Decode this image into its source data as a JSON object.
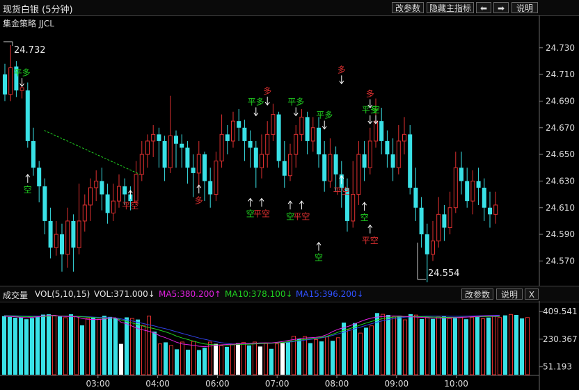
{
  "header": {
    "title": "现货白银 (5分钟)",
    "buttons": [
      "改参数",
      "隐藏主指标",
      "⬅",
      "➡",
      "说明"
    ]
  },
  "main_chart": {
    "strategy_label": "集金策略 JJCL",
    "high_label": "24.732",
    "low_label": "24.554"
  },
  "volume_panel": {
    "name": "成交量",
    "indicator": "VOL(5,10,15)",
    "vol": "VOL:371.000↓",
    "ma5": "MA5:380.200↑",
    "ma10": "MA10:378.100↓",
    "ma15": "MA15:396.200↓",
    "buttons": [
      "改参数",
      "说明",
      "X"
    ]
  },
  "colors": {
    "up": "#e03030",
    "down": "#39e1e6",
    "ma5": "#e020e0",
    "ma10": "#20d020",
    "ma15": "#3040e0",
    "signal_buy": "#e03030",
    "signal_sell": "#20d020"
  },
  "chart_data": [
    {
      "type": "candlestick",
      "y_ticks": [
        24.73,
        24.71,
        24.69,
        24.67,
        24.65,
        24.63,
        24.61,
        24.59,
        24.57
      ],
      "y_tick_labels": [
        "24.730",
        "24.710",
        "24.690",
        "24.670",
        "24.650",
        "24.630",
        "24.610",
        "24.590",
        "24.570"
      ],
      "ylim": [
        24.553,
        24.745
      ],
      "x_time_labels": [
        {
          "label": "03:00",
          "index": 16
        },
        {
          "label": "04:00",
          "index": 27
        },
        {
          "label": "06:00",
          "index": 38
        },
        {
          "label": "07:00",
          "index": 49
        },
        {
          "label": "08:00",
          "index": 60
        },
        {
          "label": "09:00",
          "index": 71
        },
        {
          "label": "10:00",
          "index": 82
        }
      ],
      "candles": [
        [
          24.71,
          24.695,
          24.718,
          24.69
        ],
        [
          24.695,
          24.715,
          24.732,
          24.69
        ],
        [
          24.716,
          24.698,
          24.72,
          24.693
        ],
        [
          24.698,
          24.7,
          24.705,
          24.692
        ],
        [
          24.698,
          24.66,
          24.704,
          24.655
        ],
        [
          24.66,
          24.64,
          24.67,
          24.634
        ],
        [
          24.64,
          24.626,
          24.645,
          24.614
        ],
        [
          24.626,
          24.6,
          24.632,
          24.59
        ],
        [
          24.6,
          24.58,
          24.61,
          24.572
        ],
        [
          24.58,
          24.59,
          24.6,
          24.574
        ],
        [
          24.59,
          24.575,
          24.598,
          24.562
        ],
        [
          24.575,
          24.6,
          24.61,
          24.565
        ],
        [
          24.6,
          24.58,
          24.605,
          24.562
        ],
        [
          24.58,
          24.6,
          24.628,
          24.575
        ],
        [
          24.6,
          24.612,
          24.62,
          24.592
        ],
        [
          24.612,
          24.625,
          24.632,
          24.6
        ],
        [
          24.625,
          24.63,
          24.638,
          24.615
        ],
        [
          24.63,
          24.62,
          24.64,
          24.608
        ],
        [
          24.62,
          24.606,
          24.628,
          24.598
        ],
        [
          24.606,
          24.615,
          24.628,
          24.6
        ],
        [
          24.615,
          24.626,
          24.635,
          24.61
        ],
        [
          24.626,
          24.62,
          24.632,
          24.612
        ],
        [
          24.62,
          24.615,
          24.626,
          24.608
        ],
        [
          24.615,
          24.635,
          24.645,
          24.612
        ],
        [
          24.635,
          24.65,
          24.66,
          24.63
        ],
        [
          24.65,
          24.66,
          24.665,
          24.64
        ],
        [
          24.66,
          24.665,
          24.672,
          24.648
        ],
        [
          24.665,
          24.66,
          24.67,
          24.64
        ],
        [
          24.66,
          24.64,
          24.664,
          24.63
        ],
        [
          24.64,
          24.664,
          24.694,
          24.636
        ],
        [
          24.664,
          24.658,
          24.668,
          24.64
        ],
        [
          24.658,
          24.655,
          24.665,
          24.64
        ],
        [
          24.655,
          24.64,
          24.66,
          24.628
        ],
        [
          24.64,
          24.636,
          24.65,
          24.618
        ],
        [
          24.636,
          24.65,
          24.66,
          24.625
        ],
        [
          24.65,
          24.63,
          24.652,
          24.615
        ],
        [
          24.63,
          24.62,
          24.64,
          24.61
        ],
        [
          24.62,
          24.645,
          24.652,
          24.615
        ],
        [
          24.645,
          24.665,
          24.68,
          24.64
        ],
        [
          24.665,
          24.66,
          24.672,
          24.65
        ],
        [
          24.66,
          24.675,
          24.682,
          24.655
        ],
        [
          24.675,
          24.67,
          24.684,
          24.66
        ],
        [
          24.67,
          24.66,
          24.676,
          24.645
        ],
        [
          24.66,
          24.655,
          24.668,
          24.64
        ],
        [
          24.655,
          24.64,
          24.66,
          24.625
        ],
        [
          24.64,
          24.65,
          24.665,
          24.632
        ],
        [
          24.65,
          24.665,
          24.675,
          24.64
        ],
        [
          24.665,
          24.68,
          24.688,
          24.66
        ],
        [
          24.68,
          24.645,
          24.682,
          24.64
        ],
        [
          24.645,
          24.634,
          24.66,
          24.625
        ],
        [
          24.634,
          24.65,
          24.658,
          24.63
        ],
        [
          24.65,
          24.665,
          24.672,
          24.64
        ],
        [
          24.665,
          24.678,
          24.684,
          24.66
        ],
        [
          24.678,
          24.66,
          24.682,
          24.65
        ],
        [
          24.66,
          24.67,
          24.678,
          24.652
        ],
        [
          24.67,
          24.65,
          24.678,
          24.64
        ],
        [
          24.65,
          24.63,
          24.66,
          24.622
        ],
        [
          24.63,
          24.65,
          24.662,
          24.625
        ],
        [
          24.65,
          24.635,
          24.656,
          24.622
        ],
        [
          24.635,
          24.625,
          24.645,
          24.61
        ],
        [
          24.625,
          24.6,
          24.632,
          24.592
        ],
        [
          24.6,
          24.62,
          24.645,
          24.595
        ],
        [
          24.62,
          24.65,
          24.66,
          24.612
        ],
        [
          24.65,
          24.64,
          24.66,
          24.63
        ],
        [
          24.64,
          24.66,
          24.67,
          24.635
        ],
        [
          24.66,
          24.675,
          24.692,
          24.655
        ],
        [
          24.675,
          24.66,
          24.685,
          24.65
        ],
        [
          24.66,
          24.65,
          24.668,
          24.64
        ],
        [
          24.65,
          24.64,
          24.662,
          24.63
        ],
        [
          24.64,
          24.66,
          24.672,
          24.635
        ],
        [
          24.66,
          24.665,
          24.678,
          24.65
        ],
        [
          24.665,
          24.625,
          24.672,
          24.62
        ],
        [
          24.625,
          24.61,
          24.64,
          24.6
        ],
        [
          24.61,
          24.59,
          24.618,
          24.58
        ],
        [
          24.59,
          24.575,
          24.598,
          24.554
        ],
        [
          24.575,
          24.585,
          24.6,
          24.57
        ],
        [
          24.585,
          24.605,
          24.618,
          24.58
        ],
        [
          24.605,
          24.595,
          24.612,
          24.585
        ],
        [
          24.595,
          24.61,
          24.622,
          24.59
        ],
        [
          24.61,
          24.64,
          24.652,
          24.606
        ],
        [
          24.64,
          24.63,
          24.652,
          24.62
        ],
        [
          24.63,
          24.615,
          24.64,
          24.61
        ],
        [
          24.615,
          24.63,
          24.638,
          24.605
        ],
        [
          24.63,
          24.625,
          24.64,
          24.612
        ],
        [
          24.625,
          24.61,
          24.632,
          24.6
        ],
        [
          24.61,
          24.605,
          24.622,
          24.595
        ],
        [
          24.605,
          24.612,
          24.622,
          24.598
        ]
      ],
      "ma_line": [
        {
          "index": 3,
          "value": 24.668
        },
        {
          "index": 20,
          "value": 24.635
        }
      ],
      "signals": [
        {
          "label": "平多",
          "index": 3,
          "direction": "down",
          "price": 24.7,
          "color": "sell"
        },
        {
          "label": "空",
          "index": 4,
          "direction": "up",
          "price": 24.636,
          "color": "sell"
        },
        {
          "label": "平空",
          "index": 22,
          "direction": "up",
          "price": 24.624,
          "color": "buy"
        },
        {
          "label": "多",
          "index": 34,
          "direction": "up",
          "price": 24.628,
          "color": "buy"
        },
        {
          "label": "平多",
          "index": 44,
          "direction": "down",
          "price": 24.678,
          "color": "sell"
        },
        {
          "label": "多",
          "index": 46,
          "direction": "down",
          "price": 24.686,
          "color": "buy"
        },
        {
          "label": "空",
          "index": 43,
          "direction": "up",
          "price": 24.618,
          "color": "sell"
        },
        {
          "label": "平空",
          "index": 45,
          "direction": "up",
          "price": 24.618,
          "color": "buy"
        },
        {
          "label": "平多",
          "index": 51,
          "direction": "down",
          "price": 24.678,
          "color": "sell"
        },
        {
          "label": "空",
          "index": 50,
          "direction": "up",
          "price": 24.616,
          "color": "sell"
        },
        {
          "label": "平空",
          "index": 52,
          "direction": "up",
          "price": 24.616,
          "color": "buy"
        },
        {
          "label": "平多",
          "index": 56,
          "direction": "down",
          "price": 24.668,
          "color": "sell"
        },
        {
          "label": "空",
          "index": 55,
          "direction": "up",
          "price": 24.585,
          "color": "sell"
        },
        {
          "label": "多",
          "index": 59,
          "direction": "down",
          "price": 24.702,
          "color": "buy"
        },
        {
          "label": "平空",
          "index": 59,
          "direction": "up",
          "price": 24.635,
          "color": "buy"
        },
        {
          "label": "多",
          "index": 64,
          "direction": "down",
          "price": 24.684,
          "color": "buy"
        },
        {
          "label": "平多",
          "index": 64,
          "direction": "down",
          "price": 24.672,
          "color": "sell"
        },
        {
          "label": "空",
          "index": 63,
          "direction": "up",
          "price": 24.615,
          "color": "sell"
        },
        {
          "label": "平空",
          "index": 64,
          "direction": "up",
          "price": 24.598,
          "color": "buy"
        },
        {
          "label": "空",
          "index": 65,
          "direction": "down",
          "price": 24.672,
          "color": "sell"
        }
      ]
    },
    {
      "type": "bar",
      "y_tick_labels": [
        "409.541",
        "230.367",
        "51.193"
      ],
      "y_ticks": [
        409.541,
        230.367,
        51.193
      ],
      "ylim": [
        0,
        460
      ],
      "volumes": [
        380,
        375,
        370,
        372,
        360,
        368,
        374,
        390,
        392,
        385,
        378,
        370,
        392,
        378,
        320,
        366,
        372,
        360,
        382,
        375,
        366,
        200,
        372,
        365,
        358,
        320,
        380,
        280,
        200,
        210,
        190,
        165,
        212,
        162,
        216,
        160,
        175,
        212,
        200,
        188,
        181,
        197,
        204,
        209,
        190,
        212,
        183,
        202,
        168,
        200,
        205,
        212,
        250,
        232,
        247,
        205,
        228,
        216,
        245,
        220,
        240,
        338,
        290,
        335,
        270,
        305,
        317,
        400,
        392,
        388,
        375,
        383,
        356,
        393,
        387,
        361,
        373,
        362,
        375,
        380,
        365,
        367,
        370,
        360,
        371,
        377,
        363,
        371,
        380,
        371,
        385,
        391,
        388,
        365,
        371
      ],
      "volume_colors": [
        "d",
        "d",
        "d",
        "d",
        "d",
        "d",
        "d",
        "d",
        "d",
        "u",
        "d",
        "u",
        "d",
        "u",
        "d",
        "u",
        "d",
        "u",
        "d",
        "d",
        "d",
        "w",
        "d",
        "u",
        "d",
        "u",
        "u",
        "d",
        "u",
        "d",
        "u",
        "d",
        "u",
        "d",
        "u",
        "d",
        "d",
        "u",
        "w",
        "u",
        "d",
        "u",
        "w",
        "u",
        "d",
        "u",
        "w",
        "u",
        "d",
        "u",
        "w",
        "d",
        "u",
        "d",
        "u",
        "d",
        "u",
        "d",
        "u",
        "d",
        "u",
        "d",
        "u",
        "d",
        "u",
        "d",
        "u",
        "d",
        "u",
        "d",
        "u",
        "d",
        "u",
        "d",
        "u",
        "d",
        "u",
        "d",
        "u",
        "d",
        "u",
        "d",
        "u",
        "d",
        "u",
        "d",
        "u",
        "d",
        "u",
        "u",
        "d",
        "u",
        "d",
        "d",
        "u"
      ],
      "ma5": [
        380,
        378,
        376,
        372,
        370,
        372,
        376,
        380,
        384,
        385,
        380,
        378,
        378,
        375,
        365,
        360,
        358,
        358,
        362,
        368,
        370,
        340,
        330,
        315,
        300,
        290,
        282,
        270,
        252,
        240,
        225,
        210,
        200,
        195,
        190,
        185,
        182,
        186,
        190,
        194,
        196,
        198,
        200,
        202,
        203,
        204,
        206,
        207,
        206,
        210,
        215,
        222,
        228,
        233,
        238,
        240,
        242,
        248,
        260,
        280,
        295,
        305,
        316,
        330,
        345,
        358,
        368,
        374,
        378,
        380,
        381,
        380,
        378,
        376,
        374,
        372,
        370,
        368,
        367,
        367,
        368,
        370,
        372,
        374,
        376,
        378,
        380,
        382,
        380,
        382
      ],
      "ma10": [
        382,
        381,
        380,
        378,
        377,
        376,
        376,
        378,
        380,
        381,
        381,
        380,
        379,
        378,
        375,
        373,
        371,
        369,
        368,
        367,
        367,
        355,
        345,
        335,
        325,
        315,
        306,
        298,
        288,
        278,
        265,
        250,
        238,
        228,
        218,
        208,
        200,
        196,
        194,
        193,
        193,
        194,
        196,
        197,
        198,
        200,
        202,
        203,
        204,
        206,
        209,
        214,
        219,
        224,
        229,
        233,
        237,
        242,
        250,
        262,
        276,
        288,
        298,
        310,
        323,
        335,
        346,
        356,
        364,
        370,
        374,
        376,
        377,
        377,
        377,
        376,
        375,
        374,
        373,
        372,
        372,
        372,
        373,
        374,
        375,
        376,
        377,
        378,
        378,
        378
      ],
      "ma15": [
        384,
        383,
        382,
        381,
        380,
        380,
        380,
        380,
        381,
        381,
        381,
        381,
        380,
        379,
        378,
        376,
        374,
        372,
        371,
        370,
        369,
        362,
        356,
        348,
        340,
        332,
        324,
        316,
        306,
        298,
        288,
        278,
        268,
        258,
        248,
        238,
        230,
        222,
        214,
        208,
        203,
        200,
        199,
        199,
        200,
        201,
        202,
        203,
        204,
        206,
        208,
        211,
        215,
        219,
        224,
        229,
        234,
        239,
        246,
        255,
        265,
        276,
        287,
        298,
        309,
        320,
        331,
        341,
        350,
        358,
        364,
        369,
        373,
        376,
        378,
        379,
        380,
        380,
        380,
        380,
        379,
        379,
        379,
        380,
        381,
        382,
        383,
        384,
        385,
        386
      ]
    }
  ]
}
